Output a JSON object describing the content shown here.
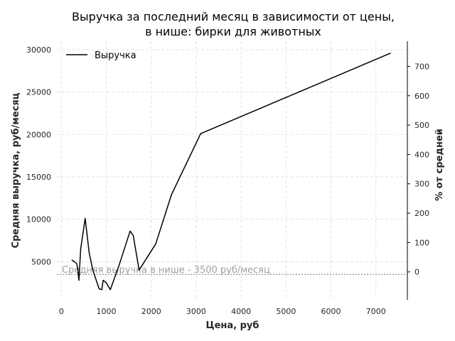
{
  "chart_data": {
    "type": "line",
    "title_line1": "Выручка за последний месяц в зависимости от цены,",
    "title_line2": "в нише: бирки для животных",
    "xlabel": "Цена, руб",
    "ylabel": "Средняя выручка, руб/месяц",
    "ylabel_right": "% от средней",
    "xlim": [
      -100,
      7700
    ],
    "ylim": [
      500,
      31000
    ],
    "ylim_right": [
      -95,
      785.7
    ],
    "xticks": [
      0,
      1000,
      2000,
      3000,
      4000,
      5000,
      6000,
      7000
    ],
    "yticks": [
      5000,
      10000,
      15000,
      20000,
      25000,
      30000
    ],
    "yticks_right": [
      0,
      100,
      200,
      300,
      400,
      500,
      600,
      700
    ],
    "grid": true,
    "legend_position": "top-left",
    "series": [
      {
        "name": "Выручка",
        "color": "#000000",
        "x": [
          230,
          340,
          360,
          390,
          430,
          530,
          620,
          700,
          840,
          900,
          930,
          1000,
          1090,
          1280,
          1530,
          1600,
          1730,
          2100,
          2450,
          3100,
          7330
        ],
        "y": [
          5200,
          4800,
          4300,
          2800,
          6500,
          10100,
          6000,
          4000,
          1800,
          1700,
          2800,
          2500,
          1700,
          4500,
          8600,
          8100,
          4000,
          7100,
          12900,
          20100,
          29600
        ]
      }
    ],
    "reference_line": {
      "y": 3500,
      "label": "Средняя выручка в нише - 3500 руб/месяц",
      "color": "#a0a0a0"
    }
  }
}
